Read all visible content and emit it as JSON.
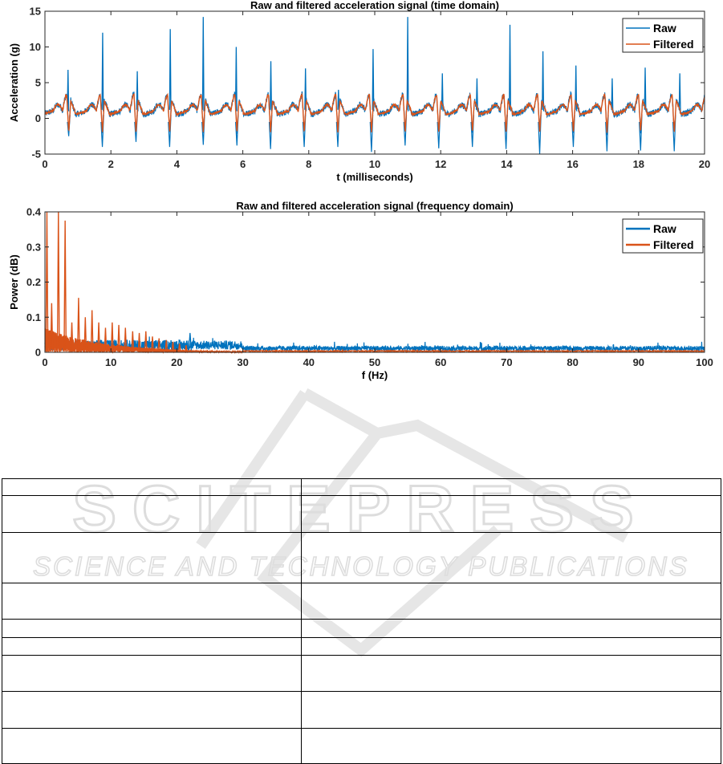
{
  "chart_data": [
    {
      "type": "line",
      "title": "Raw and filtered acceleration signal (time domain)",
      "xlabel": "t (milliseconds)",
      "ylabel": "Acceleration (g)",
      "xlim": [
        0,
        20
      ],
      "ylim": [
        -5,
        15
      ],
      "xticks": [
        "0",
        "2",
        "4",
        "6",
        "8",
        "10",
        "12",
        "14",
        "16",
        "18",
        "20"
      ],
      "yticks": [
        "-5",
        "0",
        "5",
        "10",
        "15"
      ],
      "legend_position": "top-right",
      "grid": false,
      "cycle_period_ms": 1.02,
      "series": [
        {
          "name": "Raw",
          "color": "#0072BD",
          "peaks_x": [
            0.7,
            1.75,
            2.8,
            3.8,
            4.8,
            5.8,
            6.85,
            7.9,
            8.9,
            9.95,
            11.0,
            12.05,
            13.1,
            14.1,
            15.1,
            16.1,
            17.2,
            18.2,
            19.25
          ],
          "peaks_y": [
            6.8,
            12.0,
            6.6,
            12.5,
            14.2,
            10.0,
            8.0,
            7.0,
            4.0,
            9.7,
            14.2,
            6.3,
            5.6,
            13.1,
            9.4,
            7.4,
            5.6,
            7.1,
            6.3
          ],
          "troughs_y": [
            -2.5,
            -4.0,
            -3.3,
            -4.0,
            -3.7,
            -3.8,
            -4.3,
            -4.0,
            -4.0,
            -4.7,
            -3.8,
            -4.2,
            -4.0,
            -4.3,
            -5.0,
            -4.0,
            -4.6,
            -4.5,
            -4.6
          ]
        },
        {
          "name": "Filtered",
          "color": "#D95319",
          "peak_level": 3.5,
          "trough_level": -2.5
        }
      ]
    },
    {
      "type": "line",
      "title": "Raw and filtered acceleration signal (frequency domain)",
      "xlabel": "f (Hz)",
      "ylabel": "Power (dB)",
      "xlim": [
        0,
        100
      ],
      "ylim": [
        0,
        0.4
      ],
      "xticks": [
        "0",
        "10",
        "20",
        "30",
        "40",
        "50",
        "60",
        "70",
        "80",
        "90",
        "100"
      ],
      "yticks": [
        "0",
        "0.1",
        "0.2",
        "0.3",
        "0.4"
      ],
      "legend_position": "top-right",
      "grid": false,
      "fundamental_hz": 1.02,
      "series": [
        {
          "name": "Raw",
          "color": "#0072BD",
          "noise_floor": 0.015
        },
        {
          "name": "Filtered",
          "color": "#D95319",
          "peaks_x": [
            0.3,
            1.02,
            2.04,
            3.06,
            4.08,
            5.1,
            6.12,
            7.14,
            8.16,
            9.18,
            10.2,
            11.2,
            12.2,
            13.3,
            14.3,
            15.3,
            16.3,
            17.3,
            18.4,
            19.4,
            20.4,
            21.4
          ],
          "peaks_y": [
            0.4,
            0.14,
            0.4,
            0.375,
            0.085,
            0.155,
            0.1,
            0.12,
            0.085,
            0.07,
            0.085,
            0.078,
            0.07,
            0.06,
            0.055,
            0.06,
            0.045,
            0.04,
            0.035,
            0.03,
            0.025,
            0.02
          ]
        }
      ]
    }
  ],
  "watermark": {
    "line1": "SCITEPRESS",
    "line2": "SCIENCE AND TECHNOLOGY PUBLICATIONS",
    "color": "#e3e3e3"
  },
  "table": {
    "rows": 9,
    "row_heights": [
      21,
      46,
      63,
      45,
      23,
      22,
      45,
      46,
      44
    ]
  }
}
